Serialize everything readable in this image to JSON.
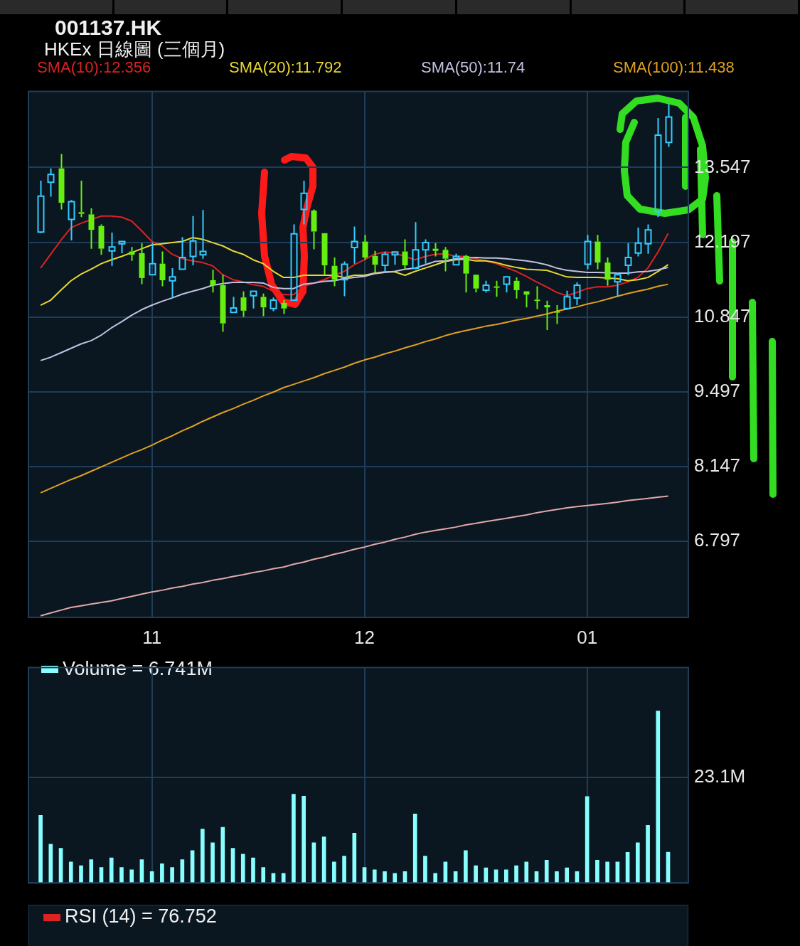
{
  "chart_data": [
    {
      "type": "candlestick",
      "title": "001137.HK",
      "subtitle": "HKEx 日線圖 (三個月)",
      "categories": [
        null,
        null,
        null,
        null,
        null,
        null,
        null,
        null,
        null,
        null,
        null,
        "11",
        null,
        null,
        null,
        null,
        null,
        null,
        null,
        null,
        null,
        null,
        null,
        null,
        null,
        null,
        null,
        null,
        null,
        null,
        null,
        null,
        "12",
        null,
        null,
        null,
        null,
        null,
        null,
        null,
        null,
        null,
        null,
        null,
        null,
        null,
        null,
        null,
        null,
        null,
        null,
        null,
        null,
        null,
        "01",
        null,
        null,
        null,
        null,
        null,
        null,
        null,
        null
      ],
      "ohlc": [
        [
          12.38,
          13.31,
          12.36,
          13.03
        ],
        [
          13.28,
          13.53,
          13.02,
          13.42
        ],
        [
          13.53,
          13.79,
          12.79,
          12.91
        ],
        [
          12.61,
          12.96,
          12.23,
          12.93
        ],
        [
          12.74,
          13.31,
          12.65,
          12.71
        ],
        [
          12.7,
          12.81,
          12.08,
          12.42
        ],
        [
          12.49,
          12.52,
          11.97,
          12.08
        ],
        [
          12.04,
          12.37,
          11.77,
          12.11
        ],
        [
          12.17,
          12.21,
          12.0,
          12.21
        ],
        [
          12.03,
          12.11,
          11.86,
          11.97
        ],
        [
          12.0,
          12.18,
          11.44,
          11.55
        ],
        [
          11.61,
          12.19,
          11.61,
          11.81
        ],
        [
          11.81,
          12.03,
          11.4,
          11.51
        ],
        [
          11.5,
          11.73,
          11.19,
          11.57
        ],
        [
          11.71,
          12.29,
          11.71,
          11.92
        ],
        [
          11.94,
          12.67,
          11.78,
          12.22
        ],
        [
          11.97,
          12.78,
          11.9,
          12.03
        ],
        [
          11.51,
          11.7,
          11.29,
          11.42
        ],
        [
          11.42,
          11.61,
          10.58,
          10.73
        ],
        [
          10.93,
          11.21,
          10.92,
          11.01
        ],
        [
          11.2,
          11.31,
          10.85,
          10.96
        ],
        [
          11.23,
          11.31,
          11.0,
          11.31
        ],
        [
          11.21,
          11.27,
          10.86,
          11.02
        ],
        [
          11.0,
          11.2,
          10.95,
          11.15
        ],
        [
          11.1,
          11.15,
          10.9,
          11.0
        ],
        [
          11.15,
          12.52,
          11.15,
          12.35
        ],
        [
          12.79,
          13.31,
          12.52,
          13.08
        ],
        [
          12.77,
          12.79,
          12.07,
          12.39
        ],
        [
          12.36,
          12.36,
          11.61,
          11.78
        ],
        [
          11.77,
          11.92,
          11.4,
          11.52
        ],
        [
          11.52,
          11.85,
          11.22,
          11.8
        ],
        [
          12.1,
          12.48,
          11.81,
          12.21
        ],
        [
          12.21,
          12.33,
          11.88,
          11.92
        ],
        [
          11.95,
          12.04,
          11.65,
          11.79
        ],
        [
          11.78,
          12.02,
          11.65,
          11.98
        ],
        [
          11.97,
          12.02,
          11.79,
          12.02
        ],
        [
          12.03,
          12.25,
          11.71,
          11.78
        ],
        [
          11.73,
          12.56,
          11.71,
          12.06
        ],
        [
          12.06,
          12.25,
          11.81,
          12.19
        ],
        [
          12.08,
          12.18,
          11.94,
          12.04
        ],
        [
          12.06,
          12.11,
          11.67,
          11.9
        ],
        [
          11.79,
          11.99,
          11.79,
          11.94
        ],
        [
          11.95,
          11.97,
          11.29,
          11.63
        ],
        [
          11.61,
          11.61,
          11.29,
          11.36
        ],
        [
          11.33,
          11.5,
          11.29,
          11.42
        ],
        [
          11.4,
          11.5,
          11.21,
          11.38
        ],
        [
          11.44,
          11.57,
          11.29,
          11.57
        ],
        [
          11.5,
          11.56,
          11.18,
          11.33
        ],
        [
          11.31,
          11.31,
          11.02,
          11.25
        ],
        [
          11.16,
          11.4,
          10.99,
          11.14
        ],
        [
          11.06,
          11.14,
          10.61,
          11.02
        ],
        [
          10.95,
          11.06,
          10.72,
          10.93
        ],
        [
          11.0,
          11.32,
          10.98,
          11.21
        ],
        [
          11.19,
          11.47,
          11.06,
          11.42
        ],
        [
          11.8,
          12.33,
          11.71,
          12.21
        ],
        [
          12.21,
          12.33,
          11.71,
          11.83
        ],
        [
          11.83,
          11.92,
          11.41,
          11.52
        ],
        [
          11.48,
          11.65,
          11.21,
          11.61
        ],
        [
          11.78,
          12.18,
          11.6,
          11.92
        ],
        [
          12.0,
          12.46,
          11.94,
          12.18
        ],
        [
          12.17,
          12.52,
          11.99,
          12.42
        ],
        [
          12.75,
          14.44,
          12.65,
          14.13
        ],
        [
          14.0,
          14.69,
          13.92,
          14.46
        ]
      ],
      "colors": [
        "#33ccff",
        "#33ccff",
        "#66ee11",
        "#33ccff",
        "#66ee11",
        "#66ee11",
        "#66ee11",
        "#33ccff",
        "#33ccff",
        "#66ee11",
        "#66ee11",
        "#33ccff",
        "#66ee11",
        "#33ccff",
        "#33ccff",
        "#33ccff",
        "#33ccff",
        "#66ee11",
        "#66ee11",
        "#33ccff",
        "#66ee11",
        "#33ccff",
        "#66ee11",
        "#33ccff",
        "#66ee11",
        "#33ccff",
        "#33ccff",
        "#66ee11",
        "#66ee11",
        "#66ee11",
        "#33ccff",
        "#33ccff",
        "#66ee11",
        "#66ee11",
        "#33ccff",
        "#33ccff",
        "#66ee11",
        "#33ccff",
        "#33ccff",
        "#66ee11",
        "#66ee11",
        "#33ccff",
        "#66ee11",
        "#66ee11",
        "#33ccff",
        "#66ee11",
        "#33ccff",
        "#66ee11",
        "#66ee11",
        "#66ee11",
        "#66ee11",
        "#66ee11",
        "#33ccff",
        "#33ccff",
        "#33ccff",
        "#66ee11",
        "#66ee11",
        "#33ccff",
        "#33ccff",
        "#33ccff",
        "#33ccff",
        "#33ccff",
        "#33ccff"
      ],
      "series": [
        {
          "type": "line",
          "color": "#e0a8a8",
          "values": [
            5.45,
            5.5,
            5.55,
            5.6,
            5.63,
            5.66,
            5.69,
            5.72,
            5.76,
            5.8,
            5.84,
            5.88,
            5.91,
            5.95,
            5.98,
            6.02,
            6.05,
            6.09,
            6.12,
            6.16,
            6.19,
            6.23,
            6.26,
            6.3,
            6.33,
            6.38,
            6.42,
            6.47,
            6.51,
            6.56,
            6.6,
            6.65,
            6.69,
            6.74,
            6.78,
            6.83,
            6.87,
            6.92,
            6.96,
            6.99,
            7.02,
            7.05,
            7.09,
            7.12,
            7.15,
            7.18,
            7.21,
            7.24,
            7.27,
            7.31,
            7.34,
            7.37,
            7.4,
            7.42,
            7.44,
            7.46,
            7.48,
            7.5,
            7.53,
            7.55,
            7.57,
            7.59,
            7.61
          ]
        },
        {
          "name": "SMA(100):11.438",
          "type": "line",
          "color": "#e0a020",
          "values": [
            7.67,
            7.75,
            7.83,
            7.91,
            7.98,
            8.06,
            8.14,
            8.22,
            8.3,
            8.38,
            8.45,
            8.53,
            8.62,
            8.7,
            8.79,
            8.87,
            8.96,
            9.04,
            9.12,
            9.19,
            9.27,
            9.34,
            9.42,
            9.49,
            9.57,
            9.63,
            9.69,
            9.75,
            9.82,
            9.88,
            9.94,
            10.01,
            10.07,
            10.12,
            10.18,
            10.23,
            10.29,
            10.34,
            10.4,
            10.45,
            10.51,
            10.56,
            10.6,
            10.64,
            10.68,
            10.71,
            10.75,
            10.79,
            10.82,
            10.86,
            10.9,
            10.95,
            10.99,
            11.03,
            11.08,
            11.12,
            11.17,
            11.22,
            11.27,
            11.31,
            11.35,
            11.4,
            11.438
          ]
        },
        {
          "name": "SMA(50):11.74",
          "type": "line",
          "color": "#c0c0e0",
          "values": [
            10.06,
            10.12,
            10.2,
            10.28,
            10.36,
            10.42,
            10.52,
            10.65,
            10.76,
            10.88,
            10.98,
            11.06,
            11.13,
            11.19,
            11.26,
            11.31,
            11.36,
            11.42,
            11.45,
            11.47,
            11.47,
            11.47,
            11.46,
            11.38,
            11.36,
            11.36,
            11.44,
            11.46,
            11.49,
            11.5,
            11.54,
            11.56,
            11.58,
            11.63,
            11.65,
            11.67,
            11.71,
            11.73,
            11.79,
            11.85,
            11.86,
            11.9,
            11.91,
            11.92,
            11.91,
            11.91,
            11.9,
            11.88,
            11.86,
            11.83,
            11.79,
            11.73,
            11.69,
            11.67,
            11.65,
            11.65,
            null,
            11.64,
            11.64,
            11.66,
            11.67,
            11.7,
            11.74
          ]
        },
        {
          "name": "SMA(20):11.792",
          "type": "line",
          "color": "#e8d830",
          "values": [
            11.06,
            11.15,
            11.33,
            11.5,
            11.62,
            11.71,
            11.81,
            11.88,
            11.94,
            12.01,
            12.08,
            12.15,
            12.17,
            12.19,
            12.21,
            12.28,
            12.25,
            12.19,
            12.13,
            12.04,
            11.98,
            11.88,
            11.81,
            11.67,
            11.56,
            11.56,
            11.6,
            11.6,
            11.6,
            11.6,
            11.56,
            11.6,
            11.6,
            11.64,
            11.66,
            11.66,
            11.6,
            11.67,
            11.73,
            11.79,
            11.85,
            11.88,
            11.89,
            11.86,
            11.86,
            11.83,
            11.78,
            11.74,
            11.71,
            11.7,
            11.69,
            11.63,
            11.57,
            11.56,
            11.56,
            11.56,
            null,
            11.54,
            11.5,
            11.52,
            11.56,
            11.67,
            11.792
          ]
        },
        {
          "name": "SMA(10):12.356",
          "type": "line",
          "color": "#dd2222",
          "values": [
            11.73,
            11.98,
            12.23,
            12.46,
            12.54,
            null,
            12.67,
            12.67,
            12.65,
            12.58,
            12.4,
            12.21,
            12.13,
            11.98,
            11.9,
            11.86,
            11.83,
            11.77,
            11.61,
            11.52,
            11.48,
            11.43,
            11.4,
            11.31,
            11.25,
            11.25,
            11.4,
            11.46,
            11.52,
            11.6,
            11.67,
            11.79,
            11.88,
            11.98,
            12.02,
            12.0,
            null,
            11.88,
            11.94,
            11.98,
            11.99,
            11.94,
            11.94,
            11.9,
            11.86,
            11.81,
            11.74,
            11.67,
            11.58,
            11.48,
            11.39,
            11.29,
            11.23,
            11.29,
            11.36,
            11.39,
            11.39,
            11.42,
            11.48,
            11.56,
            11.73,
            12.02,
            12.356
          ]
        }
      ],
      "ylim": [
        5.42,
        14.92
      ],
      "yticks": [
        6.797,
        8.147,
        9.497,
        10.847,
        12.197,
        13.547
      ],
      "grid": true,
      "legend": "top"
    },
    {
      "type": "bar",
      "categories": [
        null,
        null,
        null,
        null,
        null,
        null,
        null,
        null,
        null,
        null,
        null,
        "11",
        null,
        null,
        null,
        null,
        null,
        null,
        null,
        null,
        null,
        null,
        null,
        null,
        null,
        null,
        null,
        null,
        null,
        null,
        null,
        null,
        "12",
        null,
        null,
        null,
        null,
        null,
        null,
        null,
        null,
        null,
        null,
        null,
        null,
        null,
        null,
        null,
        null,
        null,
        null,
        null,
        null,
        null,
        "01",
        null,
        null,
        null,
        null,
        null,
        null,
        null,
        null
      ],
      "series": [
        {
          "name": "Volume  = 6.741M",
          "color": "#88ffff",
          "values": [
            14.8,
            8.5,
            7.6,
            4.6,
            3.8,
            5.1,
            3.4,
            5.5,
            3.4,
            2.9,
            5.1,
            2.5,
            4.2,
            3.4,
            5.1,
            7.1,
            11.8,
            8.8,
            12.2,
            7.6,
            6.3,
            5.5,
            3.4,
            2.1,
            2.1,
            19.4,
            19.0,
            8.8,
            10.1,
            4.6,
            5.9,
            10.9,
            3.4,
            2.9,
            2.5,
            2.1,
            2.5,
            15.1,
            5.9,
            2.1,
            4.6,
            2.5,
            7.1,
            3.8,
            3.3,
            2.9,
            2.9,
            3.8,
            4.6,
            2.5,
            5.0,
            2.5,
            3.3,
            2.5,
            18.9,
            5.0,
            4.6,
            4.6,
            6.7,
            8.8,
            12.6,
            37.6,
            6.741
          ]
        }
      ],
      "ylim": [
        0,
        47.1
      ],
      "yticks": [
        {
          "value": 0,
          "label": null
        },
        {
          "value": 23.1,
          "label": "23.1M"
        }
      ],
      "grid": true,
      "legend": "top left",
      "tick_labels": "y"
    },
    {
      "type": "other",
      "title": "RSI (14)  = 76.752"
    }
  ]
}
